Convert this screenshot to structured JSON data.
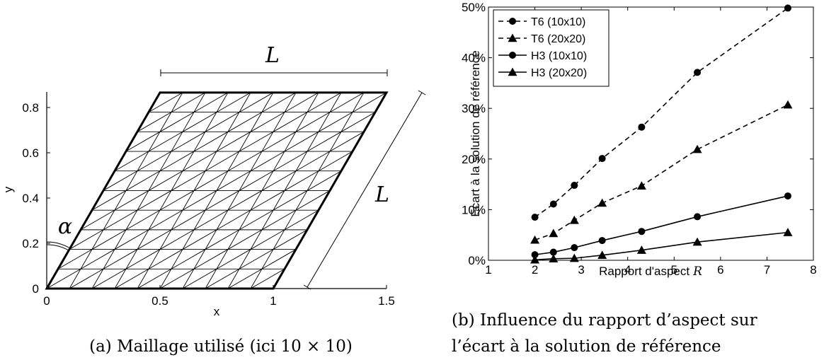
{
  "chart_data": [
    {
      "type": "mesh",
      "xlabel": "x",
      "ylabel": "y",
      "xticks": [
        "0",
        "0.5",
        "1",
        "1.5"
      ],
      "yticks": [
        "0",
        "0.2",
        "0.4",
        "0.6",
        "0.8"
      ],
      "xlim": [
        0,
        1.5
      ],
      "ylim": [
        0,
        0.866
      ],
      "mesh": {
        "n": 10,
        "corners": [
          [
            0,
            0
          ],
          [
            1,
            0
          ],
          [
            1.5,
            0.866
          ],
          [
            0.5,
            0.866
          ]
        ]
      },
      "annotations": {
        "length_top": "L",
        "length_side": "L",
        "angle": "α"
      },
      "caption": "(a) Maillage utilisé (ici 10 × 10)"
    },
    {
      "type": "line",
      "xlabel": "Rapport d'aspect",
      "xlabel_symbol": "R",
      "ylabel": "Ecart à la solution de référence",
      "xlim": [
        1,
        8
      ],
      "ylim": [
        0,
        50
      ],
      "xticks": [
        "1",
        "2",
        "3",
        "4",
        "5",
        "6",
        "7",
        "8"
      ],
      "yticks": [
        "0%",
        "10%",
        "20%",
        "30%",
        "40%",
        "50%"
      ],
      "x": [
        2,
        2.4,
        2.85,
        3.45,
        4.3,
        5.5,
        7.45
      ],
      "legend_position": "top-left",
      "series": [
        {
          "name": "T6 (10x10)",
          "dash": true,
          "marker": "circle",
          "values": [
            8.5,
            11.1,
            14.8,
            20.1,
            26.3,
            37.1,
            49.8
          ]
        },
        {
          "name": "T6 (20x20)",
          "dash": true,
          "marker": "triangle",
          "values": [
            4.0,
            5.3,
            7.9,
            11.3,
            14.7,
            21.9,
            30.7
          ]
        },
        {
          "name": "H3 (10x10)",
          "dash": false,
          "marker": "circle",
          "values": [
            1.1,
            1.6,
            2.5,
            3.9,
            5.7,
            8.6,
            12.7
          ]
        },
        {
          "name": "H3 (20x20)",
          "dash": false,
          "marker": "triangle",
          "values": [
            0.1,
            0.3,
            0.4,
            1.0,
            2.0,
            3.6,
            5.5
          ]
        }
      ],
      "caption_line1": "(b) Influence du rapport d’aspect sur",
      "caption_line2": "l’écart à la solution de référence"
    }
  ]
}
